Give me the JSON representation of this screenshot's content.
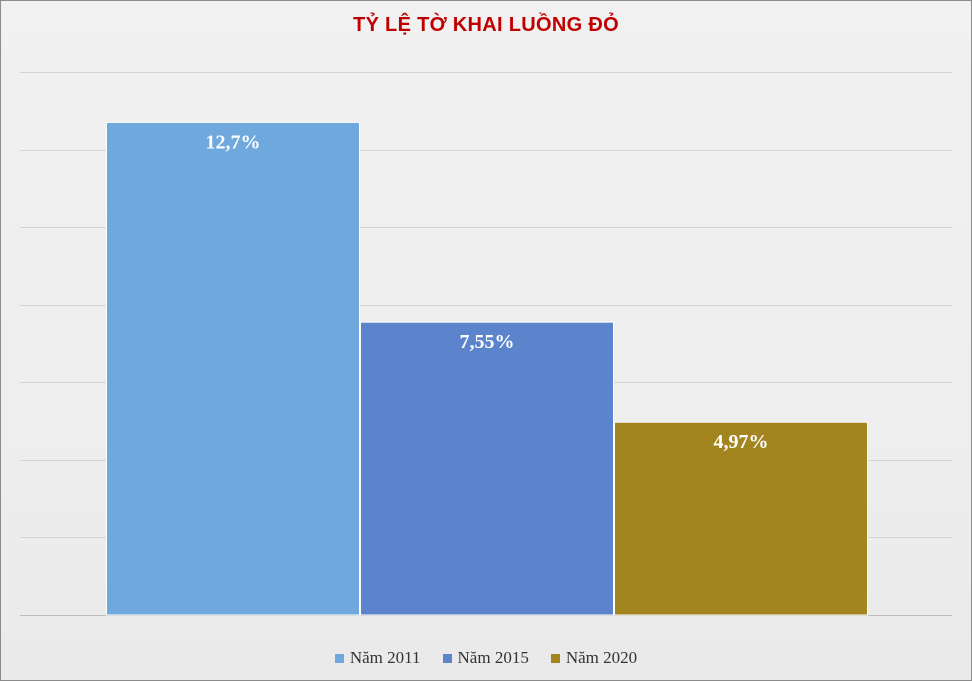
{
  "chart_data": {
    "type": "bar",
    "title": "TỶ LỆ TỜ KHAI LUỒNG ĐỎ",
    "categories": [
      "Năm 2011",
      "Năm 2015",
      "Năm 2020"
    ],
    "values": [
      12.7,
      7.55,
      4.97
    ],
    "data_labels": [
      "12,7%",
      "7,55%",
      "4,97%"
    ],
    "colors": [
      "#6fa8dc",
      "#5b84cc",
      "#a38520"
    ],
    "ylim": [
      0,
      14
    ],
    "grid": true,
    "legend_position": "bottom"
  }
}
